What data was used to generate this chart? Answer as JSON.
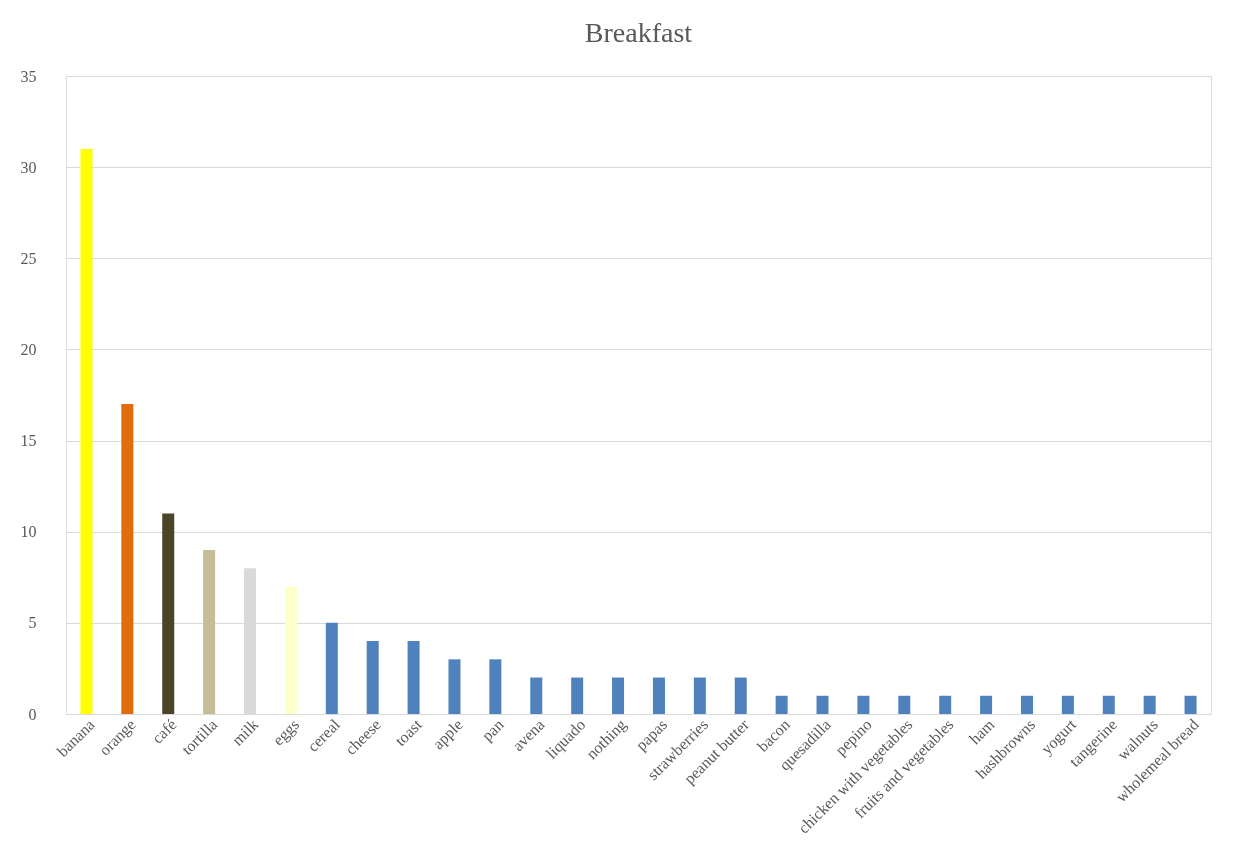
{
  "chart_data": {
    "type": "bar",
    "title": "Breakfast",
    "categories": [
      "banana",
      "orange",
      "café",
      "tortilla",
      "milk",
      "eggs",
      "cereal",
      "cheese",
      "toast",
      "apple",
      "pan",
      "avena",
      "liquado",
      "nothing",
      "papas",
      "strawberries",
      "peanut butter",
      "bacon",
      "quesadilla",
      "pepino",
      "chicken with vegetables",
      "fruits and vegetables",
      "ham",
      "hashbrowns",
      "yogurt",
      "tangerine",
      "walnuts",
      "wholemeal bread"
    ],
    "values": [
      31,
      17,
      11,
      9,
      8,
      7,
      5,
      4,
      4,
      3,
      3,
      2,
      2,
      2,
      2,
      2,
      2,
      1,
      1,
      1,
      1,
      1,
      1,
      1,
      1,
      1,
      1,
      1
    ],
    "colors": [
      "#ffff00",
      "#e36c0a",
      "#4a4429",
      "#c4bd97",
      "#d9d9d9",
      "#ffffcc",
      "#4f81bd",
      "#4f81bd",
      "#4f81bd",
      "#4f81bd",
      "#4f81bd",
      "#4f81bd",
      "#4f81bd",
      "#4f81bd",
      "#4f81bd",
      "#4f81bd",
      "#4f81bd",
      "#4f81bd",
      "#4f81bd",
      "#4f81bd",
      "#4f81bd",
      "#4f81bd",
      "#4f81bd",
      "#4f81bd",
      "#4f81bd",
      "#4f81bd",
      "#4f81bd",
      "#4f81bd"
    ],
    "ylim": [
      0,
      35
    ],
    "yticks": [
      0,
      5,
      10,
      15,
      20,
      25,
      30,
      35
    ],
    "grid": "y",
    "legend": false
  }
}
